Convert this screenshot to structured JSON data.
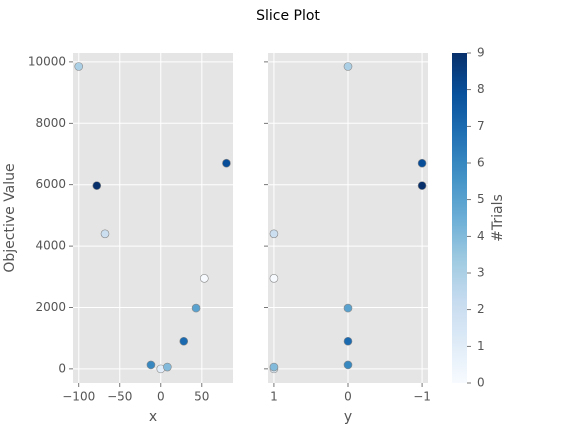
{
  "chart_data": {
    "type": "scatter",
    "title": "Slice Plot",
    "ylabel": "Objective Value",
    "ylim": [
      -460,
      10290
    ],
    "yticks": [
      0,
      2000,
      4000,
      6000,
      8000,
      10000
    ],
    "grid": true,
    "objective": [
      2950,
      0,
      4400,
      9850,
      60,
      1980,
      130,
      900,
      6700,
      5970
    ],
    "trial": [
      0,
      1,
      2,
      3,
      4,
      5,
      6,
      7,
      8,
      9
    ],
    "panels": [
      {
        "xlabel": "x",
        "x": [
          53,
          0,
          -68,
          -100,
          8,
          43,
          -12,
          28,
          80,
          -78
        ],
        "xlim": [
          -107,
          88
        ],
        "xticks": [
          {
            "value": -100,
            "label": "−100"
          },
          {
            "value": -50,
            "label": "−50"
          },
          0,
          50
        ]
      },
      {
        "xlabel": "y",
        "x": [
          1,
          1,
          1,
          0,
          1,
          0,
          0,
          0,
          -1,
          -1
        ],
        "xlim": [
          1.08,
          -1.08
        ],
        "xticks": [
          1,
          0,
          {
            "value": -1,
            "label": "−1"
          }
        ]
      }
    ],
    "colorbar": {
      "label": "#Trials",
      "lim": [
        0,
        9
      ],
      "ticks": [
        0,
        1,
        2,
        3,
        4,
        5,
        6,
        7,
        8,
        9
      ],
      "colors": [
        "#f7fbff",
        "#deebf7",
        "#c6dbef",
        "#9ecae1",
        "#6baed6",
        "#4292c6",
        "#2171b5",
        "#08519c",
        "#08306b"
      ]
    }
  }
}
